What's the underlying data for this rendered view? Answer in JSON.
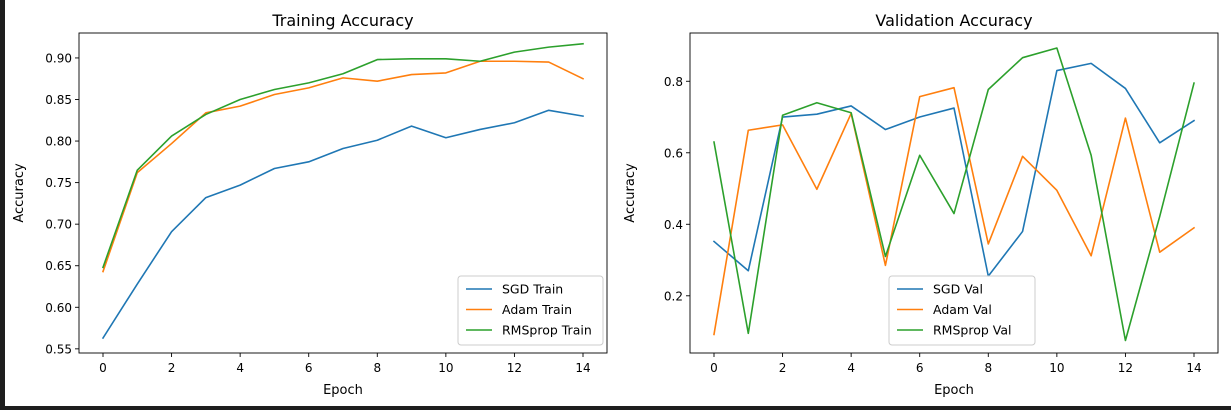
{
  "chart_data": [
    {
      "type": "line",
      "title": "Training Accuracy",
      "xlabel": "Epoch",
      "ylabel": "Accuracy",
      "x": [
        0,
        1,
        2,
        3,
        4,
        5,
        6,
        7,
        8,
        9,
        10,
        11,
        12,
        13,
        14
      ],
      "xlim": [
        -0.7,
        14.7
      ],
      "ylim": [
        0.545,
        0.93
      ],
      "xticks": [
        0,
        2,
        4,
        6,
        8,
        10,
        12,
        14
      ],
      "yticks": [
        0.55,
        0.6,
        0.65,
        0.7,
        0.75,
        0.8,
        0.85,
        0.9
      ],
      "ytick_labels": [
        "0.55",
        "0.60",
        "0.65",
        "0.70",
        "0.75",
        "0.80",
        "0.85",
        "0.90"
      ],
      "legend_position": "lower-right",
      "grid": false,
      "series": [
        {
          "name": "SGD Train",
          "color": "#1f77b4",
          "values": [
            0.563,
            0.628,
            0.691,
            0.732,
            0.747,
            0.767,
            0.775,
            0.791,
            0.801,
            0.818,
            0.804,
            0.814,
            0.822,
            0.837,
            0.83
          ]
        },
        {
          "name": "Adam Train",
          "color": "#ff7f0e",
          "values": [
            0.643,
            0.762,
            0.797,
            0.834,
            0.842,
            0.856,
            0.864,
            0.876,
            0.872,
            0.88,
            0.882,
            0.896,
            0.896,
            0.895,
            0.875
          ]
        },
        {
          "name": "RMSprop Train",
          "color": "#2ca02c",
          "values": [
            0.648,
            0.765,
            0.806,
            0.832,
            0.85,
            0.862,
            0.87,
            0.881,
            0.898,
            0.899,
            0.899,
            0.896,
            0.907,
            0.913,
            0.917
          ]
        }
      ]
    },
    {
      "type": "line",
      "title": "Validation Accuracy",
      "xlabel": "Epoch",
      "ylabel": "Accuracy",
      "x": [
        0,
        1,
        2,
        3,
        4,
        5,
        6,
        7,
        8,
        9,
        10,
        11,
        12,
        13,
        14
      ],
      "xlim": [
        -0.7,
        14.7
      ],
      "ylim": [
        0.04,
        0.935
      ],
      "xticks": [
        0,
        2,
        4,
        6,
        8,
        10,
        12,
        14
      ],
      "yticks": [
        0.2,
        0.4,
        0.6,
        0.8
      ],
      "ytick_labels": [
        "0.2",
        "0.4",
        "0.6",
        "0.8"
      ],
      "legend_position": "lower-center",
      "grid": false,
      "series": [
        {
          "name": "SGD Val",
          "color": "#1f77b4",
          "values": [
            0.352,
            0.27,
            0.7,
            0.708,
            0.731,
            0.665,
            0.7,
            0.725,
            0.255,
            0.38,
            0.83,
            0.85,
            0.78,
            0.628,
            0.69
          ]
        },
        {
          "name": "Adam Val",
          "color": "#ff7f0e",
          "values": [
            0.092,
            0.663,
            0.678,
            0.498,
            0.71,
            0.285,
            0.757,
            0.782,
            0.345,
            0.59,
            0.495,
            0.312,
            0.697,
            0.322,
            0.39
          ]
        },
        {
          "name": "RMSprop Val",
          "color": "#2ca02c",
          "values": [
            0.63,
            0.095,
            0.705,
            0.74,
            0.712,
            0.31,
            0.593,
            0.43,
            0.777,
            0.866,
            0.893,
            0.593,
            0.075,
            0.422,
            0.795
          ]
        }
      ]
    }
  ]
}
